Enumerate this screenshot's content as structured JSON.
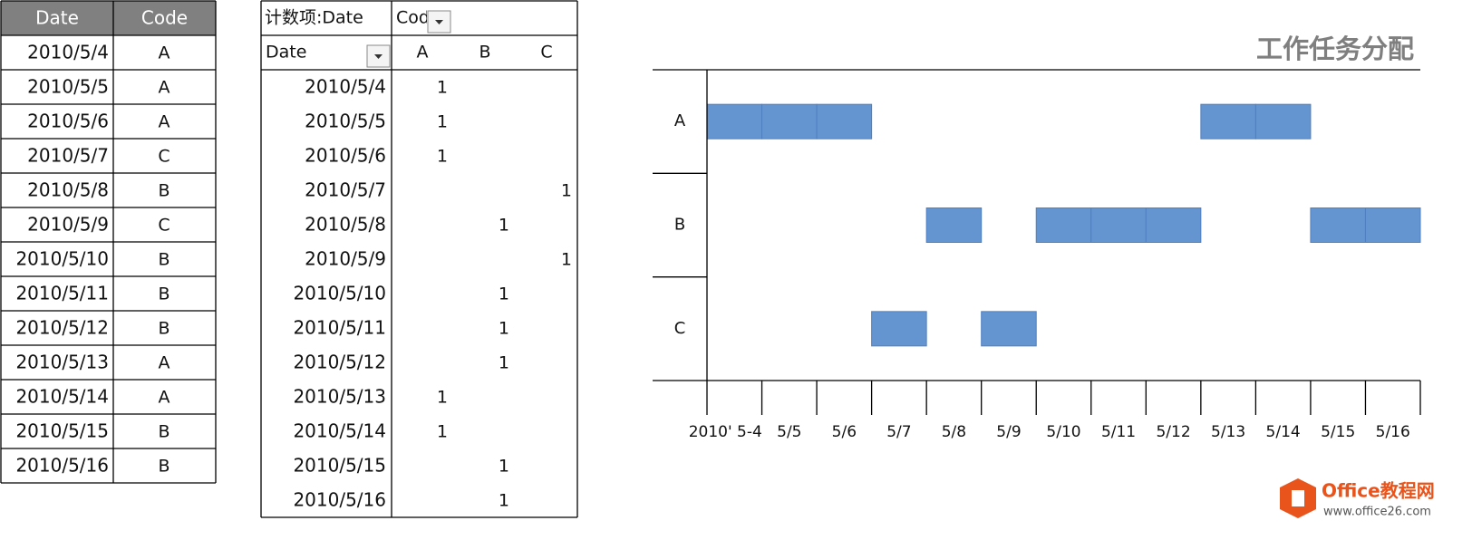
{
  "source_table": {
    "headers": [
      "Date",
      "Code"
    ],
    "rows": [
      [
        "2010/5/4",
        "A"
      ],
      [
        "2010/5/5",
        "A"
      ],
      [
        "2010/5/6",
        "A"
      ],
      [
        "2010/5/7",
        "C"
      ],
      [
        "2010/5/8",
        "B"
      ],
      [
        "2010/5/9",
        "C"
      ],
      [
        "2010/5/10",
        "B"
      ],
      [
        "2010/5/11",
        "B"
      ],
      [
        "2010/5/12",
        "B"
      ],
      [
        "2010/5/13",
        "A"
      ],
      [
        "2010/5/14",
        "A"
      ],
      [
        "2010/5/15",
        "B"
      ],
      [
        "2010/5/16",
        "B"
      ]
    ]
  },
  "pivot": {
    "corner": "计数项:Date",
    "column_field": "Code",
    "row_field": "Date",
    "columns": [
      "A",
      "B",
      "C"
    ],
    "rows": [
      {
        "label": "2010/5/4",
        "values": [
          1,
          null,
          null
        ]
      },
      {
        "label": "2010/5/5",
        "values": [
          1,
          null,
          null
        ]
      },
      {
        "label": "2010/5/6",
        "values": [
          1,
          null,
          null
        ]
      },
      {
        "label": "2010/5/7",
        "values": [
          null,
          null,
          1
        ]
      },
      {
        "label": "2010/5/8",
        "values": [
          null,
          1,
          null
        ]
      },
      {
        "label": "2010/5/9",
        "values": [
          null,
          null,
          1
        ]
      },
      {
        "label": "2010/5/10",
        "values": [
          null,
          1,
          null
        ]
      },
      {
        "label": "2010/5/11",
        "values": [
          null,
          1,
          null
        ]
      },
      {
        "label": "2010/5/12",
        "values": [
          null,
          1,
          null
        ]
      },
      {
        "label": "2010/5/13",
        "values": [
          1,
          null,
          null
        ]
      },
      {
        "label": "2010/5/14",
        "values": [
          1,
          null,
          null
        ]
      },
      {
        "label": "2010/5/15",
        "values": [
          null,
          1,
          null
        ]
      },
      {
        "label": "2010/5/16",
        "values": [
          null,
          1,
          null
        ]
      }
    ]
  },
  "chart_data": {
    "type": "gantt",
    "title": "工作任务分配",
    "categories": [
      "2010' 5-4",
      "5/5",
      "5/6",
      "5/7",
      "5/8",
      "5/9",
      "5/10",
      "5/11",
      "5/12",
      "5/13",
      "5/14",
      "5/15",
      "5/16"
    ],
    "series": [
      {
        "name": "A",
        "color": "#6595d1",
        "values": [
          1,
          1,
          1,
          null,
          null,
          null,
          null,
          null,
          null,
          1,
          1,
          null,
          null
        ]
      },
      {
        "name": "B",
        "color": "#6595d1",
        "values": [
          null,
          null,
          null,
          null,
          1,
          null,
          1,
          1,
          1,
          null,
          null,
          1,
          1
        ]
      },
      {
        "name": "C",
        "color": "#6595d1",
        "values": [
          null,
          null,
          null,
          1,
          null,
          1,
          null,
          null,
          null,
          null,
          null,
          null,
          null
        ]
      }
    ]
  },
  "watermark": {
    "brand": "Office教程网",
    "url": "www.office26.com"
  }
}
